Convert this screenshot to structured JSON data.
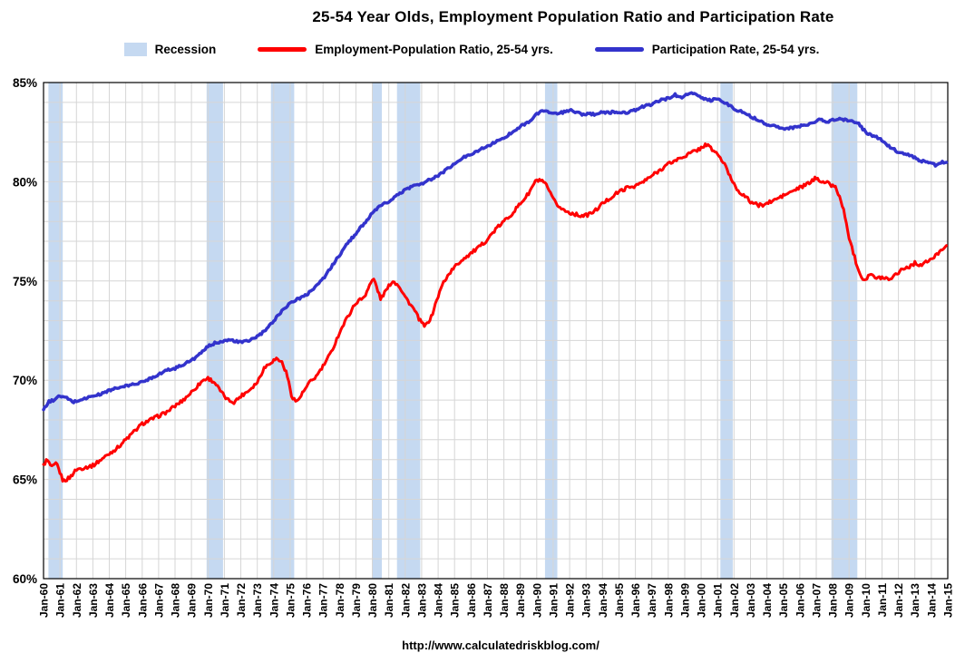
{
  "page": {
    "title": "25-54 Year Olds, Employment Population Ratio and Participation Rate",
    "source_url": "http://www.calculatedriskblog.com/"
  },
  "legend": {
    "recession_label": "Recession",
    "epop_label": "Employment-Population Ratio, 25-54 yrs.",
    "participation_label": "Participation Rate, 25-54 yrs."
  },
  "chart_data": {
    "type": "line",
    "title": "25-54 Year Olds, Employment Population Ratio and Participation Rate",
    "xlabel": "",
    "ylabel": "",
    "x_axis": {
      "start_year": 1960,
      "end_year": 2015,
      "tick_labels": [
        "Jan-60",
        "Jan-61",
        "Jan-62",
        "Jan-63",
        "Jan-64",
        "Jan-65",
        "Jan-66",
        "Jan-67",
        "Jan-68",
        "Jan-69",
        "Jan-70",
        "Jan-71",
        "Jan-72",
        "Jan-73",
        "Jan-74",
        "Jan-75",
        "Jan-76",
        "Jan-77",
        "Jan-78",
        "Jan-79",
        "Jan-80",
        "Jan-81",
        "Jan-82",
        "Jan-83",
        "Jan-84",
        "Jan-85",
        "Jan-86",
        "Jan-87",
        "Jan-88",
        "Jan-89",
        "Jan-90",
        "Jan-91",
        "Jan-92",
        "Jan-93",
        "Jan-94",
        "Jan-95",
        "Jan-96",
        "Jan-97",
        "Jan-98",
        "Jan-99",
        "Jan-00",
        "Jan-01",
        "Jan-02",
        "Jan-03",
        "Jan-04",
        "Jan-05",
        "Jan-06",
        "Jan-07",
        "Jan-08",
        "Jan-09",
        "Jan-10",
        "Jan-11",
        "Jan-12",
        "Jan-13",
        "Jan-14",
        "Jan-15"
      ]
    },
    "y_axis": {
      "min": 60,
      "max": 85,
      "major_step": 5,
      "minor_step": 1,
      "tick_labels": [
        "60%",
        "65%",
        "70%",
        "75%",
        "80%",
        "85%"
      ]
    },
    "grid": true,
    "legend_position": "top",
    "colors": {
      "recession": "#c5d9f1",
      "employment_population": "#ff0000",
      "participation": "#3333cc",
      "grid": "#d6d6d6",
      "axis": "#000000"
    },
    "recessions": [
      [
        1960.3,
        1961.17
      ],
      [
        1969.92,
        1970.92
      ],
      [
        1973.83,
        1975.25
      ],
      [
        1980.0,
        1980.58
      ],
      [
        1981.5,
        1982.92
      ],
      [
        1990.5,
        1991.25
      ],
      [
        2001.17,
        2001.92
      ],
      [
        2007.92,
        2009.5
      ]
    ],
    "series": [
      {
        "name": "Employment-Population Ratio, 25-54 yrs.",
        "color_key": "employment_population",
        "stroke_width": 3,
        "data_name": "epop-series-line",
        "points": [
          [
            1960.0,
            65.7
          ],
          [
            1960.2,
            66.0
          ],
          [
            1960.5,
            65.6
          ],
          [
            1960.8,
            65.8
          ],
          [
            1961.2,
            64.9
          ],
          [
            1961.6,
            65.1
          ],
          [
            1962.0,
            65.5
          ],
          [
            1962.5,
            65.6
          ],
          [
            1963.0,
            65.7
          ],
          [
            1963.5,
            66.0
          ],
          [
            1964.0,
            66.3
          ],
          [
            1964.5,
            66.6
          ],
          [
            1965.0,
            67.0
          ],
          [
            1965.5,
            67.4
          ],
          [
            1966.0,
            67.8
          ],
          [
            1966.5,
            68.0
          ],
          [
            1967.0,
            68.2
          ],
          [
            1967.5,
            68.4
          ],
          [
            1968.0,
            68.7
          ],
          [
            1968.5,
            69.0
          ],
          [
            1969.0,
            69.4
          ],
          [
            1969.7,
            70.0
          ],
          [
            1970.0,
            70.1
          ],
          [
            1970.4,
            69.9
          ],
          [
            1970.8,
            69.4
          ],
          [
            1971.2,
            69.0
          ],
          [
            1971.6,
            68.9
          ],
          [
            1972.0,
            69.2
          ],
          [
            1972.5,
            69.5
          ],
          [
            1973.0,
            69.9
          ],
          [
            1973.4,
            70.6
          ],
          [
            1973.8,
            70.9
          ],
          [
            1974.2,
            71.1
          ],
          [
            1974.5,
            70.9
          ],
          [
            1974.8,
            70.3
          ],
          [
            1975.1,
            69.2
          ],
          [
            1975.4,
            68.9
          ],
          [
            1975.8,
            69.4
          ],
          [
            1976.2,
            69.9
          ],
          [
            1976.6,
            70.2
          ],
          [
            1977.0,
            70.7
          ],
          [
            1977.5,
            71.4
          ],
          [
            1978.0,
            72.4
          ],
          [
            1978.5,
            73.2
          ],
          [
            1979.0,
            73.9
          ],
          [
            1979.5,
            74.2
          ],
          [
            1979.9,
            74.9
          ],
          [
            1980.1,
            75.1
          ],
          [
            1980.5,
            74.1
          ],
          [
            1980.9,
            74.6
          ],
          [
            1981.2,
            75.0
          ],
          [
            1981.6,
            74.8
          ],
          [
            1982.0,
            74.2
          ],
          [
            1982.5,
            73.6
          ],
          [
            1982.9,
            73.0
          ],
          [
            1983.2,
            72.7
          ],
          [
            1983.6,
            73.2
          ],
          [
            1983.9,
            74.0
          ],
          [
            1984.3,
            74.9
          ],
          [
            1984.7,
            75.4
          ],
          [
            1985.0,
            75.7
          ],
          [
            1985.5,
            76.1
          ],
          [
            1986.0,
            76.4
          ],
          [
            1986.5,
            76.7
          ],
          [
            1987.0,
            77.1
          ],
          [
            1987.5,
            77.6
          ],
          [
            1988.0,
            78.0
          ],
          [
            1988.5,
            78.4
          ],
          [
            1989.0,
            78.9
          ],
          [
            1989.5,
            79.4
          ],
          [
            1989.9,
            80.0
          ],
          [
            1990.2,
            80.1
          ],
          [
            1990.6,
            79.8
          ],
          [
            1991.0,
            79.1
          ],
          [
            1991.4,
            78.7
          ],
          [
            1991.8,
            78.5
          ],
          [
            1992.2,
            78.4
          ],
          [
            1992.6,
            78.3
          ],
          [
            1993.0,
            78.3
          ],
          [
            1993.5,
            78.5
          ],
          [
            1994.0,
            78.9
          ],
          [
            1994.5,
            79.2
          ],
          [
            1995.0,
            79.5
          ],
          [
            1995.5,
            79.7
          ],
          [
            1996.0,
            79.8
          ],
          [
            1996.5,
            80.0
          ],
          [
            1997.0,
            80.3
          ],
          [
            1997.5,
            80.6
          ],
          [
            1998.0,
            80.9
          ],
          [
            1998.5,
            81.1
          ],
          [
            1999.0,
            81.3
          ],
          [
            1999.5,
            81.5
          ],
          [
            2000.0,
            81.7
          ],
          [
            2000.3,
            81.9
          ],
          [
            2000.7,
            81.6
          ],
          [
            2001.0,
            81.4
          ],
          [
            2001.4,
            80.9
          ],
          [
            2001.8,
            80.2
          ],
          [
            2002.2,
            79.6
          ],
          [
            2002.6,
            79.3
          ],
          [
            2003.0,
            79.0
          ],
          [
            2003.5,
            78.8
          ],
          [
            2004.0,
            78.9
          ],
          [
            2004.5,
            79.1
          ],
          [
            2005.0,
            79.3
          ],
          [
            2005.5,
            79.5
          ],
          [
            2006.0,
            79.7
          ],
          [
            2006.5,
            79.9
          ],
          [
            2007.0,
            80.2
          ],
          [
            2007.4,
            80.0
          ],
          [
            2007.8,
            79.9
          ],
          [
            2008.2,
            79.7
          ],
          [
            2008.6,
            78.8
          ],
          [
            2009.0,
            77.2
          ],
          [
            2009.4,
            76.0
          ],
          [
            2009.8,
            75.1
          ],
          [
            2010.0,
            75.1
          ],
          [
            2010.3,
            75.4
          ],
          [
            2010.6,
            75.1
          ],
          [
            2011.0,
            75.2
          ],
          [
            2011.4,
            75.1
          ],
          [
            2011.8,
            75.3
          ],
          [
            2012.2,
            75.6
          ],
          [
            2012.6,
            75.7
          ],
          [
            2013.0,
            75.9
          ],
          [
            2013.4,
            75.8
          ],
          [
            2013.8,
            76.0
          ],
          [
            2014.2,
            76.2
          ],
          [
            2014.6,
            76.6
          ],
          [
            2014.92,
            76.8
          ]
        ]
      },
      {
        "name": "Participation Rate, 25-54 yrs.",
        "color_key": "participation",
        "stroke_width": 3.5,
        "data_name": "participation-series-line",
        "points": [
          [
            1960.0,
            68.5
          ],
          [
            1960.3,
            68.9
          ],
          [
            1960.6,
            69.0
          ],
          [
            1961.0,
            69.2
          ],
          [
            1961.4,
            69.1
          ],
          [
            1961.8,
            68.9
          ],
          [
            1962.2,
            69.0
          ],
          [
            1962.6,
            69.1
          ],
          [
            1963.0,
            69.2
          ],
          [
            1963.5,
            69.3
          ],
          [
            1964.0,
            69.5
          ],
          [
            1964.5,
            69.6
          ],
          [
            1965.0,
            69.7
          ],
          [
            1965.5,
            69.8
          ],
          [
            1966.0,
            69.9
          ],
          [
            1966.5,
            70.1
          ],
          [
            1967.0,
            70.3
          ],
          [
            1967.5,
            70.5
          ],
          [
            1968.0,
            70.6
          ],
          [
            1968.5,
            70.8
          ],
          [
            1969.0,
            71.0
          ],
          [
            1969.5,
            71.3
          ],
          [
            1970.0,
            71.7
          ],
          [
            1970.5,
            71.9
          ],
          [
            1971.0,
            72.0
          ],
          [
            1971.5,
            72.0
          ],
          [
            1972.0,
            71.9
          ],
          [
            1972.5,
            72.0
          ],
          [
            1973.0,
            72.2
          ],
          [
            1973.5,
            72.5
          ],
          [
            1974.0,
            73.0
          ],
          [
            1974.5,
            73.5
          ],
          [
            1975.0,
            73.9
          ],
          [
            1975.5,
            74.1
          ],
          [
            1976.0,
            74.3
          ],
          [
            1976.5,
            74.7
          ],
          [
            1977.0,
            75.1
          ],
          [
            1977.5,
            75.7
          ],
          [
            1978.0,
            76.3
          ],
          [
            1978.5,
            76.9
          ],
          [
            1979.0,
            77.4
          ],
          [
            1979.5,
            77.9
          ],
          [
            1980.0,
            78.4
          ],
          [
            1980.5,
            78.8
          ],
          [
            1981.0,
            79.0
          ],
          [
            1981.5,
            79.3
          ],
          [
            1982.0,
            79.6
          ],
          [
            1982.5,
            79.8
          ],
          [
            1983.0,
            79.9
          ],
          [
            1983.5,
            80.1
          ],
          [
            1984.0,
            80.3
          ],
          [
            1984.5,
            80.6
          ],
          [
            1985.0,
            80.9
          ],
          [
            1985.5,
            81.2
          ],
          [
            1986.0,
            81.4
          ],
          [
            1986.5,
            81.6
          ],
          [
            1987.0,
            81.8
          ],
          [
            1987.5,
            82.0
          ],
          [
            1988.0,
            82.2
          ],
          [
            1988.5,
            82.5
          ],
          [
            1989.0,
            82.8
          ],
          [
            1989.5,
            83.0
          ],
          [
            1990.0,
            83.4
          ],
          [
            1990.4,
            83.6
          ],
          [
            1990.8,
            83.5
          ],
          [
            1991.2,
            83.4
          ],
          [
            1991.6,
            83.5
          ],
          [
            1992.0,
            83.6
          ],
          [
            1992.4,
            83.5
          ],
          [
            1992.8,
            83.4
          ],
          [
            1993.2,
            83.4
          ],
          [
            1993.6,
            83.4
          ],
          [
            1994.0,
            83.5
          ],
          [
            1994.5,
            83.5
          ],
          [
            1995.0,
            83.5
          ],
          [
            1995.5,
            83.5
          ],
          [
            1996.0,
            83.6
          ],
          [
            1996.5,
            83.8
          ],
          [
            1997.0,
            83.9
          ],
          [
            1997.5,
            84.1
          ],
          [
            1998.0,
            84.2
          ],
          [
            1998.4,
            84.4
          ],
          [
            1998.8,
            84.2
          ],
          [
            1999.1,
            84.4
          ],
          [
            1999.4,
            84.5
          ],
          [
            1999.8,
            84.3
          ],
          [
            2000.2,
            84.2
          ],
          [
            2000.6,
            84.1
          ],
          [
            2001.0,
            84.2
          ],
          [
            2001.4,
            84.0
          ],
          [
            2001.8,
            83.8
          ],
          [
            2002.2,
            83.6
          ],
          [
            2002.6,
            83.5
          ],
          [
            2003.0,
            83.3
          ],
          [
            2003.5,
            83.1
          ],
          [
            2004.0,
            82.9
          ],
          [
            2004.5,
            82.8
          ],
          [
            2005.0,
            82.7
          ],
          [
            2005.5,
            82.7
          ],
          [
            2006.0,
            82.8
          ],
          [
            2006.5,
            82.9
          ],
          [
            2007.0,
            83.0
          ],
          [
            2007.3,
            83.2
          ],
          [
            2007.6,
            83.0
          ],
          [
            2008.0,
            83.1
          ],
          [
            2008.4,
            83.2
          ],
          [
            2008.8,
            83.1
          ],
          [
            2009.2,
            83.1
          ],
          [
            2009.6,
            82.9
          ],
          [
            2010.0,
            82.5
          ],
          [
            2010.4,
            82.3
          ],
          [
            2010.8,
            82.2
          ],
          [
            2011.2,
            81.9
          ],
          [
            2011.6,
            81.7
          ],
          [
            2012.0,
            81.5
          ],
          [
            2012.4,
            81.4
          ],
          [
            2012.8,
            81.3
          ],
          [
            2013.2,
            81.1
          ],
          [
            2013.6,
            81.0
          ],
          [
            2014.0,
            81.0
          ],
          [
            2014.3,
            80.8
          ],
          [
            2014.6,
            81.0
          ],
          [
            2014.92,
            81.0
          ]
        ]
      }
    ]
  }
}
